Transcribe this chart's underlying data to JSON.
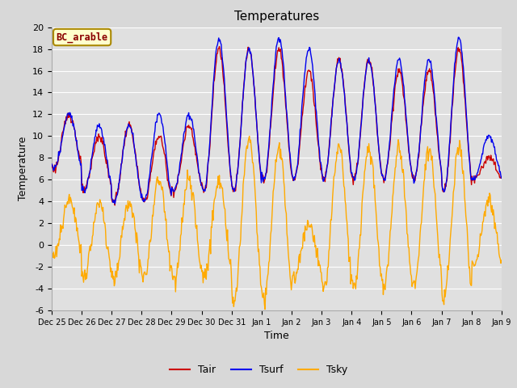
{
  "title": "Temperatures",
  "xlabel": "Time",
  "ylabel": "Temperature",
  "ylim": [
    -6,
    20
  ],
  "annotation": "BC_arable",
  "legend_labels": [
    "Tair",
    "Tsurf",
    "Tsky"
  ],
  "colors": {
    "Tair": "#cc0000",
    "Tsurf": "#0000ee",
    "Tsky": "#ffaa00"
  },
  "tick_labels": [
    "Dec 25",
    "Dec 26",
    "Dec 27",
    "Dec 28",
    "Dec 29",
    "Dec 30",
    "Dec 31",
    "Jan 1",
    "Jan 2",
    "Jan 3",
    "Jan 4",
    "Jan 5",
    "Jan 6",
    "Jan 7",
    "Jan 8",
    "Jan 9"
  ],
  "yticks": [
    -6,
    -4,
    -2,
    0,
    2,
    4,
    6,
    8,
    10,
    12,
    14,
    16,
    18,
    20
  ],
  "fig_facecolor": "#d8d8d8",
  "ax_facecolor": "#e0e0e0",
  "grid_color": "#ffffff",
  "linewidth": 1.0
}
